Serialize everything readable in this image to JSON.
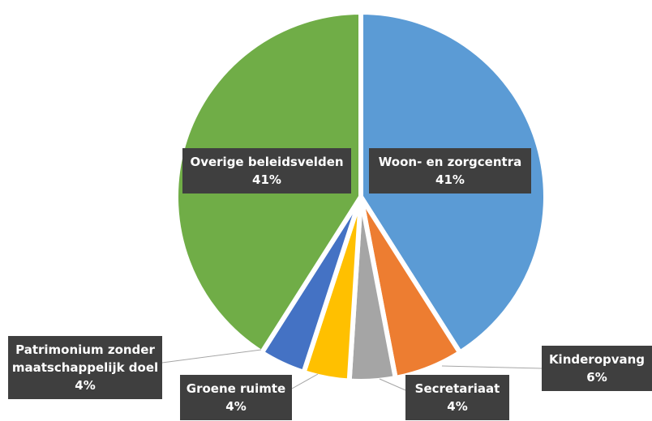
{
  "chart_data": {
    "type": "pie",
    "categories": [
      "Woon- en zorgcentra",
      "Kinderopvang",
      "Secretariaat",
      "Groene ruimte",
      "Patrimonium zonder maatschappelijk doel",
      "Overige beleidsvelden"
    ],
    "values": [
      41,
      6,
      4,
      4,
      4,
      41
    ],
    "value_labels": [
      "41%",
      "6%",
      "4%",
      "4%",
      "4%",
      "41%"
    ],
    "colors": [
      "#5b9bd5",
      "#ed7d31",
      "#a5a5a5",
      "#ffc000",
      "#4472c4",
      "#70ad47"
    ]
  }
}
